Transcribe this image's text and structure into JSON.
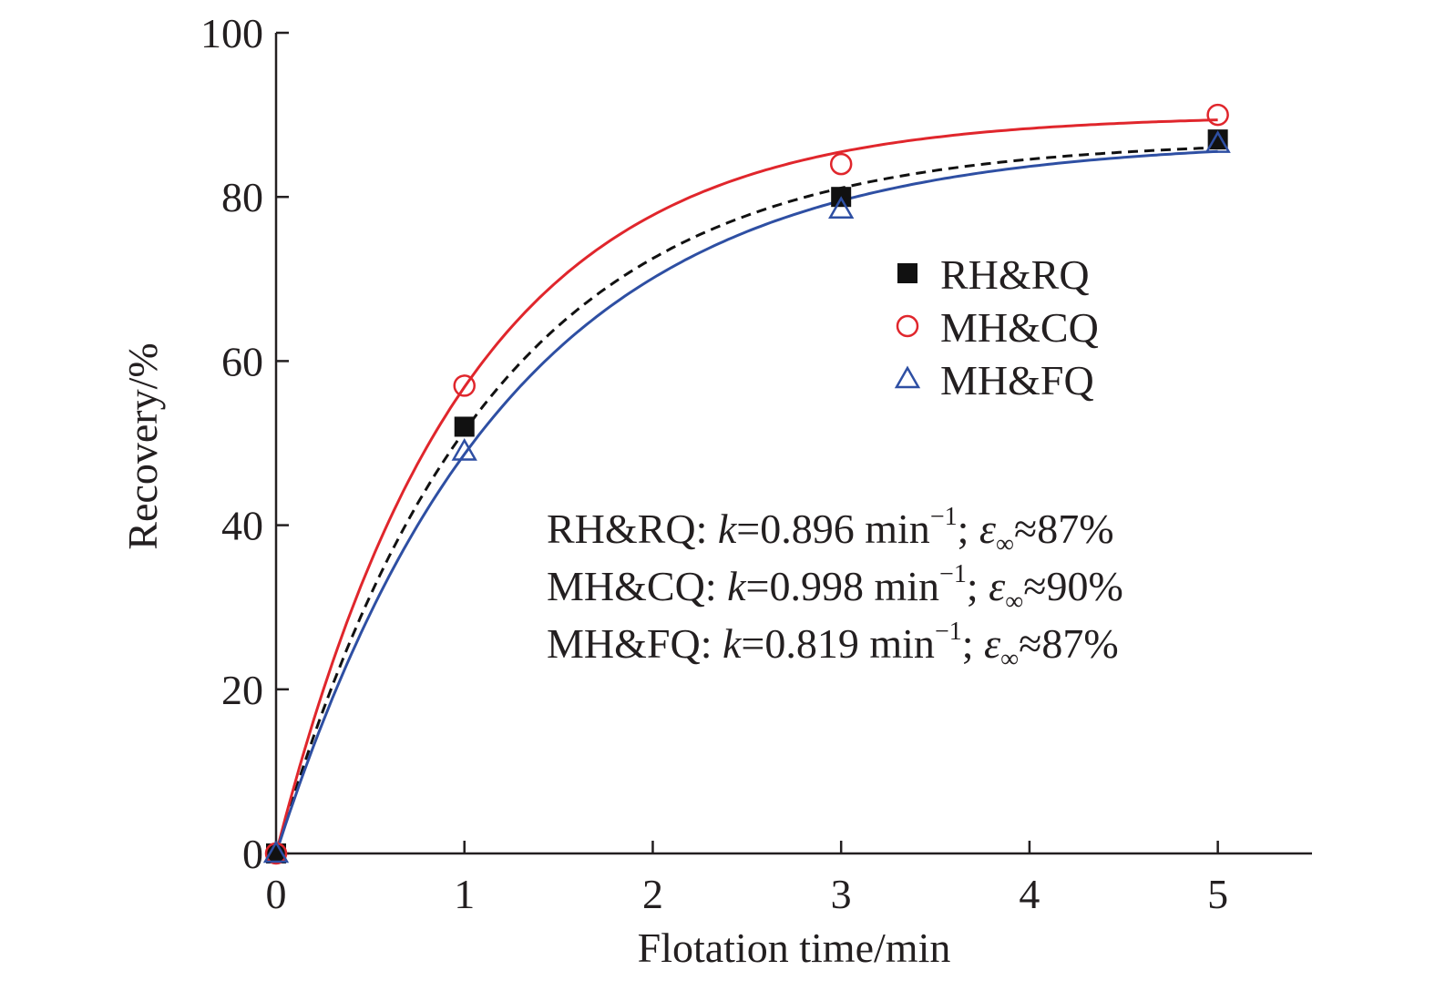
{
  "chart_data": {
    "type": "scatter",
    "title": "",
    "xlabel": "Flotation time/min",
    "ylabel": "Recovery/%",
    "xlim": [
      0,
      5.5
    ],
    "ylim": [
      0,
      100
    ],
    "xticks": [
      0,
      1,
      2,
      3,
      4,
      5
    ],
    "yticks": [
      0,
      20,
      40,
      60,
      80,
      100
    ],
    "grid": false,
    "legend_position": "upper-right",
    "series": [
      {
        "name": "RH&RQ",
        "marker": "filled-square",
        "color": "#111111",
        "fit_style": "dashed",
        "fit_color": "#111111",
        "x": [
          0,
          1,
          3,
          5
        ],
        "y": [
          0,
          52,
          80,
          87
        ],
        "fit": {
          "k": 0.896,
          "eps_inf": 87
        }
      },
      {
        "name": "MH&CQ",
        "marker": "open-circle",
        "color": "#e0262c",
        "fit_style": "solid",
        "fit_color": "#e0262c",
        "x": [
          0,
          1,
          3,
          5
        ],
        "y": [
          0,
          57,
          84,
          90
        ],
        "fit": {
          "k": 0.998,
          "eps_inf": 90
        }
      },
      {
        "name": "MH&FQ",
        "marker": "open-triangle",
        "color": "#2e4fa3",
        "fit_style": "solid",
        "fit_color": "#2e4fa3",
        "x": [
          0,
          1,
          3,
          5
        ],
        "y": [
          0,
          49,
          78.5,
          86.5
        ],
        "fit": {
          "k": 0.819,
          "eps_inf": 87
        }
      }
    ],
    "annotations": [
      {
        "name": "RH&RQ",
        "prefix": ": ",
        "k_sym": "k",
        "k_text": "=0.896 min",
        "unit_sup": "−1",
        "sep": "; ",
        "eps_sym": "ε",
        "eps_sub": "∞",
        "eps_text": "≈87%"
      },
      {
        "name": "MH&CQ",
        "prefix": ": ",
        "k_sym": "k",
        "k_text": "=0.998 min",
        "unit_sup": "−1",
        "sep": "; ",
        "eps_sym": "ε",
        "eps_sub": "∞",
        "eps_text": "≈90%"
      },
      {
        "name": "MH&FQ",
        "prefix": ": ",
        "k_sym": "k",
        "k_text": "=0.819 min",
        "unit_sup": "−1",
        "sep": "; ",
        "eps_sym": "ε",
        "eps_sub": "∞",
        "eps_text": "≈87%"
      }
    ]
  }
}
